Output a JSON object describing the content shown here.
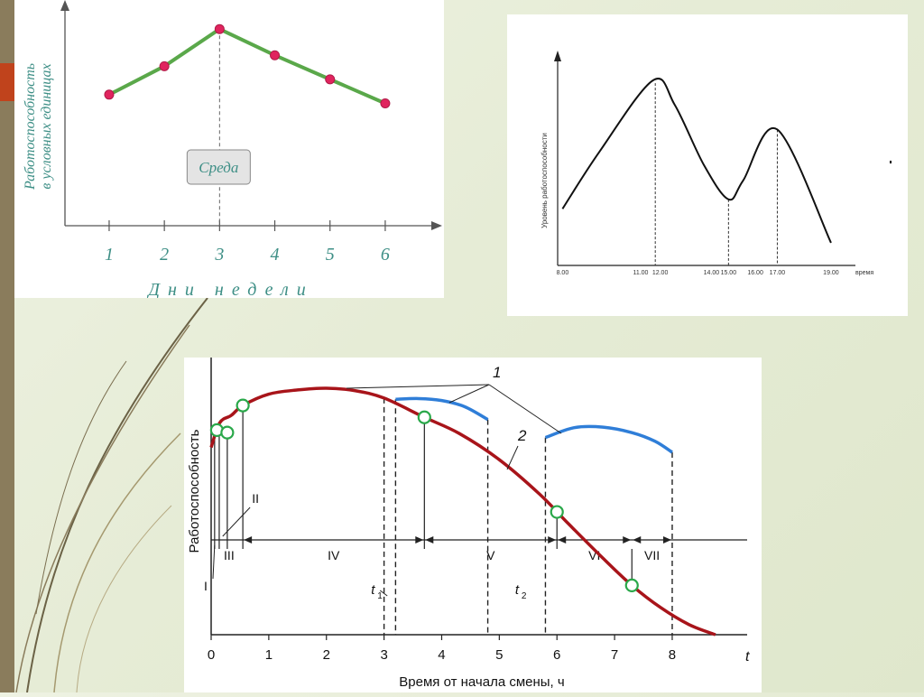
{
  "colors": {
    "side_bar": "#8a7c5c",
    "accent": "#c0431c",
    "chart1_line": "#5aa84a",
    "chart1_point": "#e0245e",
    "chart1_text": "#3e8f86",
    "chart3_curve": "#a8141a",
    "chart3_arcs": "#2f7ed8",
    "chart3_points": "#2aa84a"
  },
  "chart_data": [
    {
      "type": "line",
      "x": [
        1,
        2,
        3,
        4,
        5,
        6
      ],
      "values": [
        3.0,
        3.65,
        4.5,
        3.9,
        3.35,
        2.8
      ],
      "xlabel": "Дни недели",
      "ylabel": "Работоспособность в условных единицах",
      "annotation": "Среда",
      "annotation_x": 3,
      "xticks": [
        "1",
        "2",
        "3",
        "4",
        "5",
        "6"
      ],
      "xlim": [
        0.2,
        6.9
      ],
      "ylim": [
        0,
        5
      ],
      "grid": false
    },
    {
      "type": "line",
      "x": [
        8.0,
        9.5,
        11.7,
        12.6,
        13.8,
        14.8,
        15.4,
        16.8,
        19.0
      ],
      "values": [
        3.0,
        6.0,
        9.8,
        8.5,
        5.3,
        3.5,
        4.5,
        7.2,
        1.2
      ],
      "xlabel": "время",
      "ylabel": "Уровень работоспособности",
      "xticks": [
        "8.00",
        "11.00",
        "12.00",
        "14.00",
        "15.00",
        "16.00",
        "17.00",
        "19.00"
      ],
      "xtick_values": [
        8.0,
        11.2,
        12.0,
        14.1,
        14.8,
        15.9,
        16.8,
        19.0
      ],
      "dashed_at": [
        11.8,
        14.8,
        16.8
      ],
      "xlim": [
        7.8,
        20.0
      ],
      "ylim": [
        0,
        11
      ],
      "grid": false
    },
    {
      "type": "line",
      "curve2": {
        "name": "2",
        "x": [
          0.0,
          0.15,
          0.35,
          0.55,
          1.0,
          1.5,
          2.0,
          2.5,
          3.0,
          3.7,
          4.3,
          5.0,
          5.7,
          6.2,
          6.8,
          7.3,
          7.8,
          8.3,
          8.75
        ],
        "y": [
          0.76,
          0.86,
          0.89,
          0.93,
          0.976,
          0.993,
          1.0,
          0.99,
          0.96,
          0.882,
          0.817,
          0.71,
          0.57,
          0.45,
          0.31,
          0.2,
          0.11,
          0.04,
          0.0
        ]
      },
      "curve1_arcs": {
        "name": "1",
        "arcs": [
          {
            "x": [
              3.2,
              3.6,
              4.0,
              4.4,
              4.8
            ],
            "y": [
              0.955,
              0.958,
              0.95,
              0.925,
              0.873
            ]
          },
          {
            "x": [
              5.8,
              6.3,
              6.8,
              7.3,
              7.7,
              8.0
            ],
            "y": [
              0.8,
              0.84,
              0.842,
              0.82,
              0.785,
              0.74
            ]
          }
        ]
      },
      "points": [
        [
          0.1,
          0.83
        ],
        [
          0.28,
          0.82
        ],
        [
          0.55,
          0.93
        ],
        [
          3.7,
          0.882
        ],
        [
          6.0,
          0.498
        ],
        [
          7.3,
          0.2
        ]
      ],
      "dashed_at": [
        3.0,
        3.2,
        4.8,
        5.8,
        8.0
      ],
      "solid_at": [
        0.06,
        0.14,
        0.28,
        0.55,
        3.7,
        6.0,
        7.3
      ],
      "phases": [
        {
          "label": "I",
          "from": 0.0,
          "to": 0.06
        },
        {
          "label": "II",
          "from": 0.06,
          "to": 0.28
        },
        {
          "label": "III",
          "from": 0.28,
          "to": 0.55
        },
        {
          "label": "IV",
          "from": 0.55,
          "to": 3.7
        },
        {
          "label": "V",
          "from": 3.7,
          "to": 6.0
        },
        {
          "label": "VI",
          "from": 6.0,
          "to": 7.3
        },
        {
          "label": "VII",
          "from": 7.3,
          "to": 8.0
        }
      ],
      "t_labels": [
        {
          "label": "t",
          "sub": "1",
          "x": 2.9
        },
        {
          "label": "t",
          "sub": "2",
          "x": 5.4
        }
      ],
      "xticks": [
        "0",
        "1",
        "2",
        "3",
        "4",
        "5",
        "6",
        "7",
        "8"
      ],
      "xlabel": "Время от начала смены, ч",
      "ylabel": "Работоспособность",
      "x_axis_name": "t",
      "xlim": [
        0,
        9.3
      ],
      "ylim": [
        0,
        1
      ],
      "grid": false
    }
  ]
}
